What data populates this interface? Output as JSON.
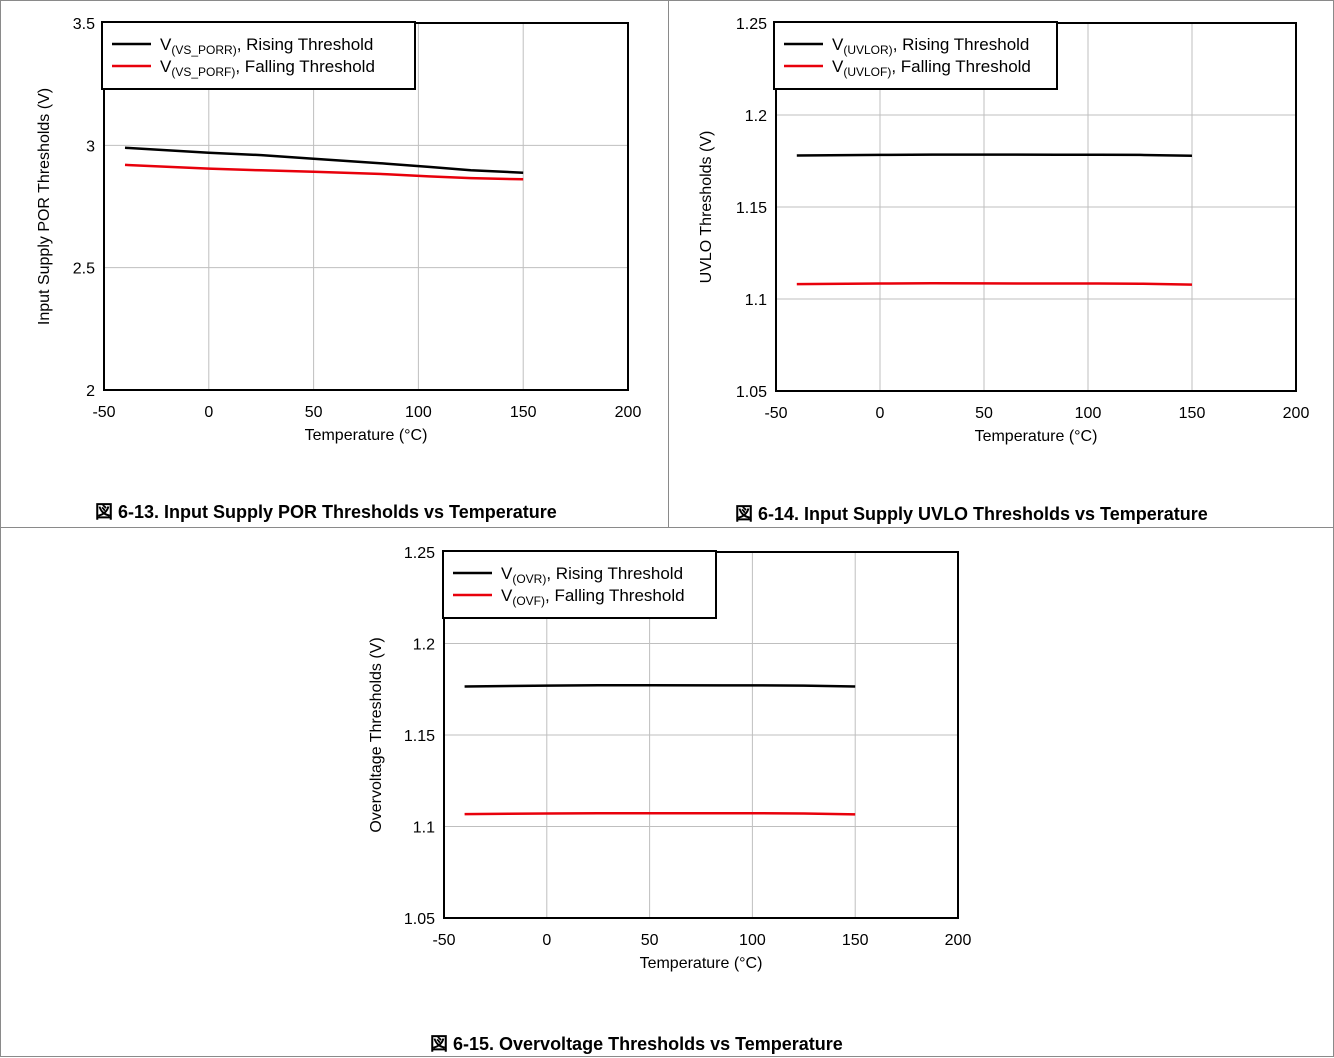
{
  "chart_data": [
    {
      "type": "line",
      "caption": "図 6-13. Input Supply POR Thresholds vs Temperature",
      "xlabel": "Temperature (°C)",
      "ylabel": "Input Supply POR Thresholds (V)",
      "xlim": [
        -50,
        200
      ],
      "ylim": [
        2,
        3.5
      ],
      "xticks": [
        "-50",
        "0",
        "50",
        "100",
        "150",
        "200"
      ],
      "yticks": [
        "2",
        "2.5",
        "3",
        "3.5"
      ],
      "grid": true,
      "legend_position": "top-left",
      "series": [
        {
          "name": "V",
          "sub": "(VS_PORR)",
          "suffix": ", Rising Threshold",
          "color": "#000000",
          "x": [
            -40,
            0,
            25,
            50,
            85,
            105,
            125,
            150
          ],
          "y": [
            2.99,
            2.97,
            2.96,
            2.945,
            2.925,
            2.912,
            2.898,
            2.888
          ]
        },
        {
          "name": "V",
          "sub": "(VS_PORF)",
          "suffix": ", Falling Threshold",
          "color": "#e8000b",
          "x": [
            -40,
            0,
            25,
            50,
            85,
            105,
            125,
            150
          ],
          "y": [
            2.92,
            2.905,
            2.898,
            2.892,
            2.882,
            2.873,
            2.866,
            2.861
          ]
        }
      ]
    },
    {
      "type": "line",
      "caption": "図 6-14. Input Supply UVLO Thresholds vs Temperature",
      "xlabel": "Temperature (°C)",
      "ylabel": "UVLO Thresholds (V)",
      "xlim": [
        -50,
        200
      ],
      "ylim": [
        1.05,
        1.25
      ],
      "xticks": [
        "-50",
        "0",
        "50",
        "100",
        "150",
        "200"
      ],
      "yticks": [
        "1.05",
        "1.1",
        "1.15",
        "1.2",
        "1.25"
      ],
      "grid": true,
      "legend_position": "top-left",
      "series": [
        {
          "name": "V",
          "sub": "(UVLOR)",
          "suffix": ", Rising Threshold",
          "color": "#000000",
          "x": [
            -40,
            0,
            25,
            50,
            85,
            105,
            125,
            150
          ],
          "y": [
            1.178,
            1.1783,
            1.1785,
            1.1785,
            1.1784,
            1.1784,
            1.1783,
            1.1778
          ]
        },
        {
          "name": "V",
          "sub": "(UVLOF)",
          "suffix": ", Falling Threshold",
          "color": "#e8000b",
          "x": [
            -40,
            0,
            25,
            50,
            85,
            105,
            125,
            150
          ],
          "y": [
            1.1081,
            1.1084,
            1.1086,
            1.1085,
            1.1084,
            1.1084,
            1.1083,
            1.1078
          ]
        }
      ]
    },
    {
      "type": "line",
      "caption": "図 6-15. Overvoltage Thresholds vs Temperature",
      "xlabel": "Temperature (°C)",
      "ylabel": "Overvoltage Thresholds (V)",
      "xlim": [
        -50,
        200
      ],
      "ylim": [
        1.05,
        1.25
      ],
      "xticks": [
        "-50",
        "0",
        "50",
        "100",
        "150",
        "200"
      ],
      "yticks": [
        "1.05",
        "1.1",
        "1.15",
        "1.2",
        "1.25"
      ],
      "grid": true,
      "legend_position": "top-left",
      "series": [
        {
          "name": "V",
          "sub": "(OVR)",
          "suffix": ", Rising Threshold",
          "color": "#000000",
          "x": [
            -40,
            0,
            25,
            50,
            85,
            105,
            125,
            150
          ],
          "y": [
            1.1765,
            1.177,
            1.1772,
            1.1772,
            1.1771,
            1.1771,
            1.177,
            1.1765
          ]
        },
        {
          "name": "V",
          "sub": "(OVF)",
          "suffix": ", Falling Threshold",
          "color": "#e8000b",
          "x": [
            -40,
            0,
            25,
            50,
            85,
            105,
            125,
            150
          ],
          "y": [
            1.1068,
            1.1071,
            1.1072,
            1.1072,
            1.1072,
            1.1072,
            1.1071,
            1.1066
          ]
        }
      ]
    }
  ]
}
